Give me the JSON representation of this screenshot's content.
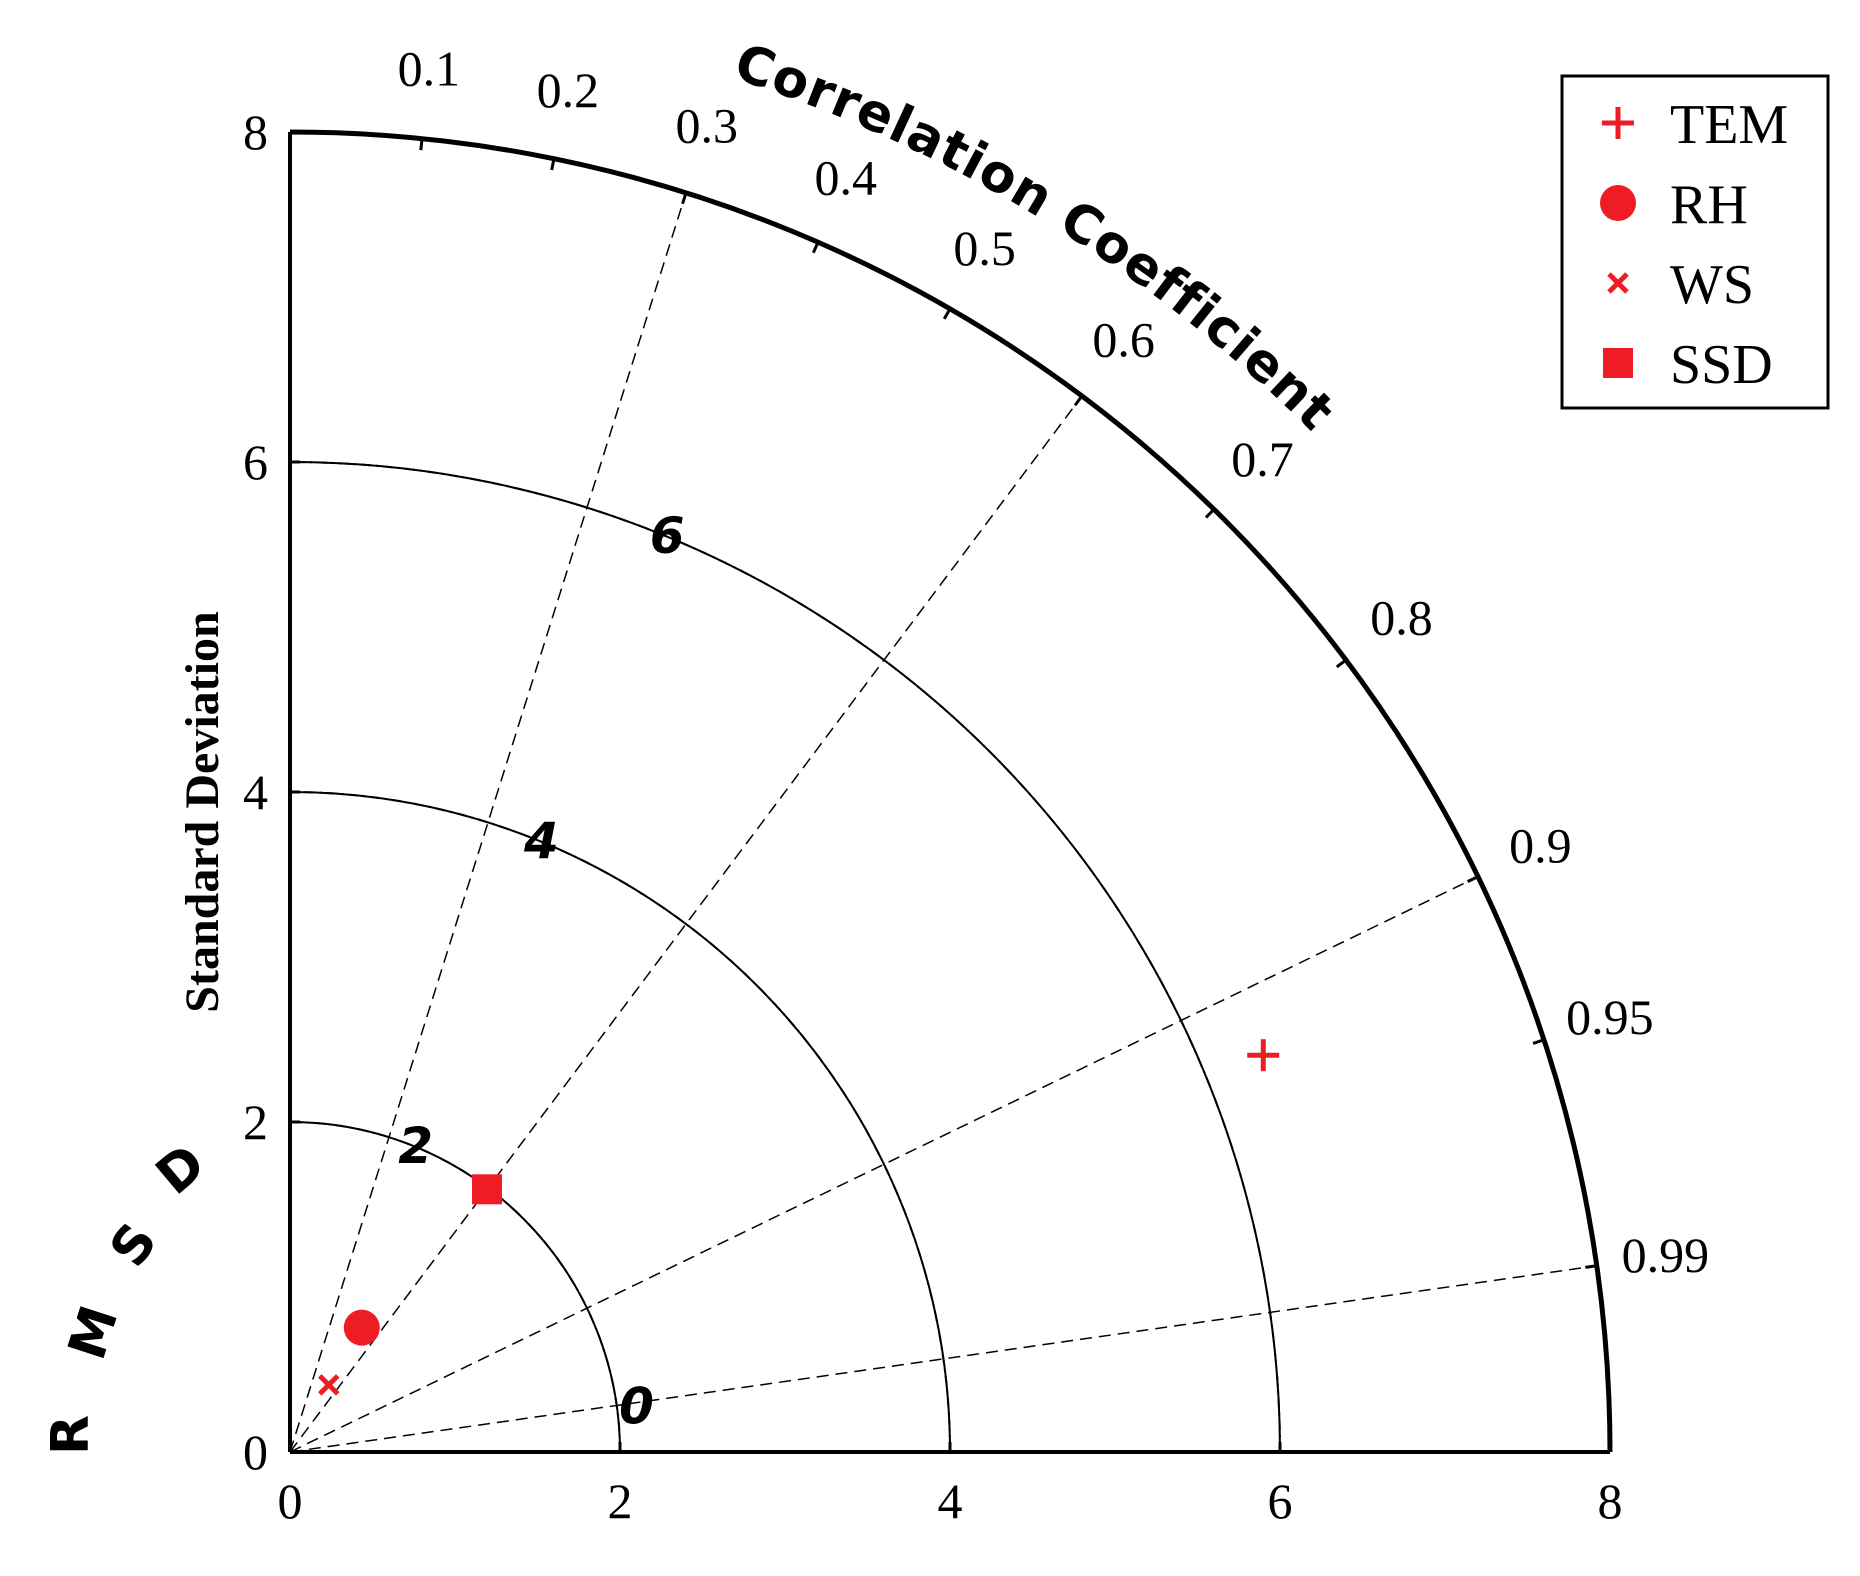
{
  "chart_data": {
    "type": "taylor-diagram",
    "ylabel": "Standard Deviation",
    "rmsd_label": "RMSD",
    "arc_label": "Correlation Coefficient",
    "std_range": [
      0,
      8
    ],
    "std_ticks": [
      0,
      2,
      4,
      6,
      8
    ],
    "std_arcs": [
      2,
      4,
      6
    ],
    "correlation_ticks": [
      0.1,
      0.2,
      0.3,
      0.4,
      0.5,
      0.6,
      0.7,
      0.8,
      0.9,
      0.95,
      0.99
    ],
    "correlation_lines": [
      0.3,
      0.6,
      0.9,
      0.99
    ],
    "rmsd_reference_std": 0,
    "rmsd_contours": [
      2,
      4,
      6
    ],
    "rmsd_labels": [
      0,
      2,
      4,
      6
    ],
    "points": [
      {
        "name": "TEM",
        "marker": "plus",
        "correlation": 0.926,
        "std": 6.37
      },
      {
        "name": "RH",
        "marker": "circle",
        "correlation": 0.5,
        "std": 0.87
      },
      {
        "name": "WS",
        "marker": "cross",
        "correlation": 0.5,
        "std": 0.47
      },
      {
        "name": "SSD",
        "marker": "square",
        "correlation": 0.6,
        "std": 1.99
      }
    ],
    "legend": [
      "TEM",
      "RH",
      "WS",
      "SSD"
    ],
    "legend_position": "top-right",
    "marker_color": "#ee1c24",
    "line_color": "#000000"
  }
}
